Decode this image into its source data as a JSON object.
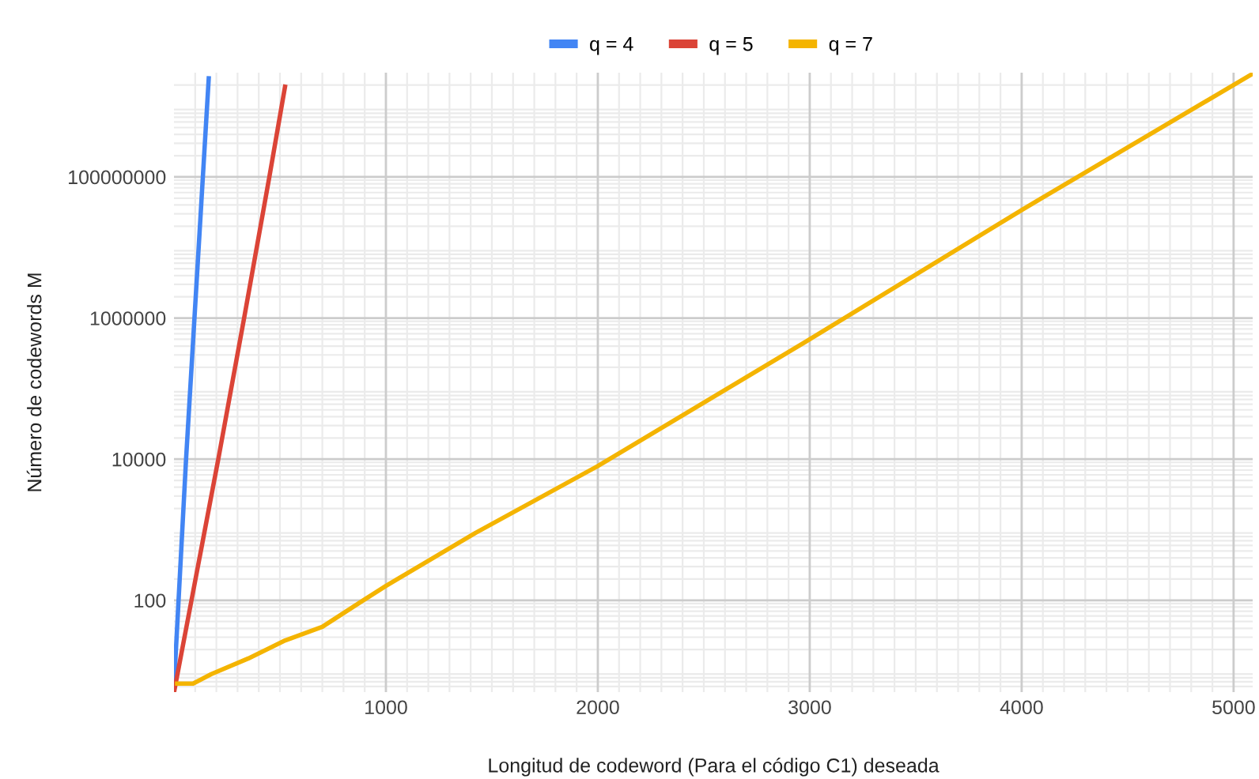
{
  "chart_data": {
    "type": "line",
    "xlabel": "Longitud de codeword (Para el código C1) deseada",
    "ylabel": "Número de codewords M",
    "log": "y",
    "grid": true,
    "legend": "top",
    "marker": "none",
    "line_style": "solid",
    "xlim": [
      0,
      5090
    ],
    "xticks": [
      1000,
      2000,
      3000,
      4000,
      5000
    ],
    "ylim": [
      5,
      3000000000
    ],
    "yticks": [
      100,
      10000,
      1000000,
      100000000
    ],
    "series": [
      {
        "name": "q = 4",
        "color": "#4285f4",
        "x": [
          0,
          57,
          164
        ],
        "values": [
          6,
          10000,
          2500000000
        ]
      },
      {
        "name": "q = 5",
        "color": "#db4437",
        "x": [
          2,
          209,
          331,
          450,
          524
        ],
        "values": [
          5.3,
          10000,
          1000000,
          100000000,
          1900000000
        ]
      },
      {
        "name": "q = 7",
        "color": "#f4b400",
        "x": [
          15,
          90,
          176,
          351,
          525,
          700,
          893,
          1000,
          1422,
          2000,
          3000,
          4000,
          5090
        ],
        "values": [
          6.6,
          6.6,
          9,
          15,
          27,
          42,
          100,
          160,
          900,
          8000,
          500000,
          34000000,
          2900000000
        ]
      }
    ]
  }
}
